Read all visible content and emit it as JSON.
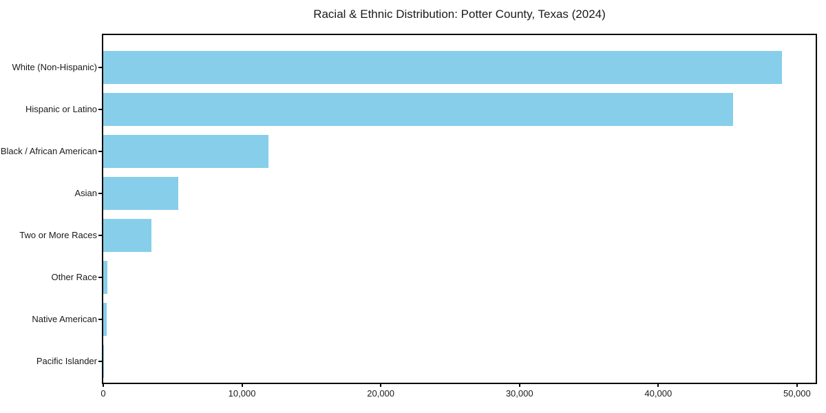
{
  "chart_data": {
    "type": "bar",
    "orientation": "horizontal",
    "title": "Racial & Ethnic Distribution: Potter County, Texas (2024)",
    "xlabel": "",
    "ylabel": "",
    "categories": [
      "White (Non-Hispanic)",
      "Hispanic or Latino",
      "Black / African American",
      "Asian",
      "Two or More Races",
      "Other Race",
      "Native American",
      "Pacific Islander"
    ],
    "values": [
      48900,
      45400,
      11900,
      5430,
      3480,
      300,
      250,
      50
    ],
    "xlim": [
      0,
      51345
    ],
    "x_ticks": [
      0,
      10000,
      20000,
      30000,
      40000,
      50000
    ],
    "x_tick_labels": [
      "0",
      "10,000",
      "20,000",
      "30,000",
      "40,000",
      "50,000"
    ],
    "bar_color": "#87CEEB",
    "spine_color": "#000000",
    "grid": false,
    "legend": null
  }
}
